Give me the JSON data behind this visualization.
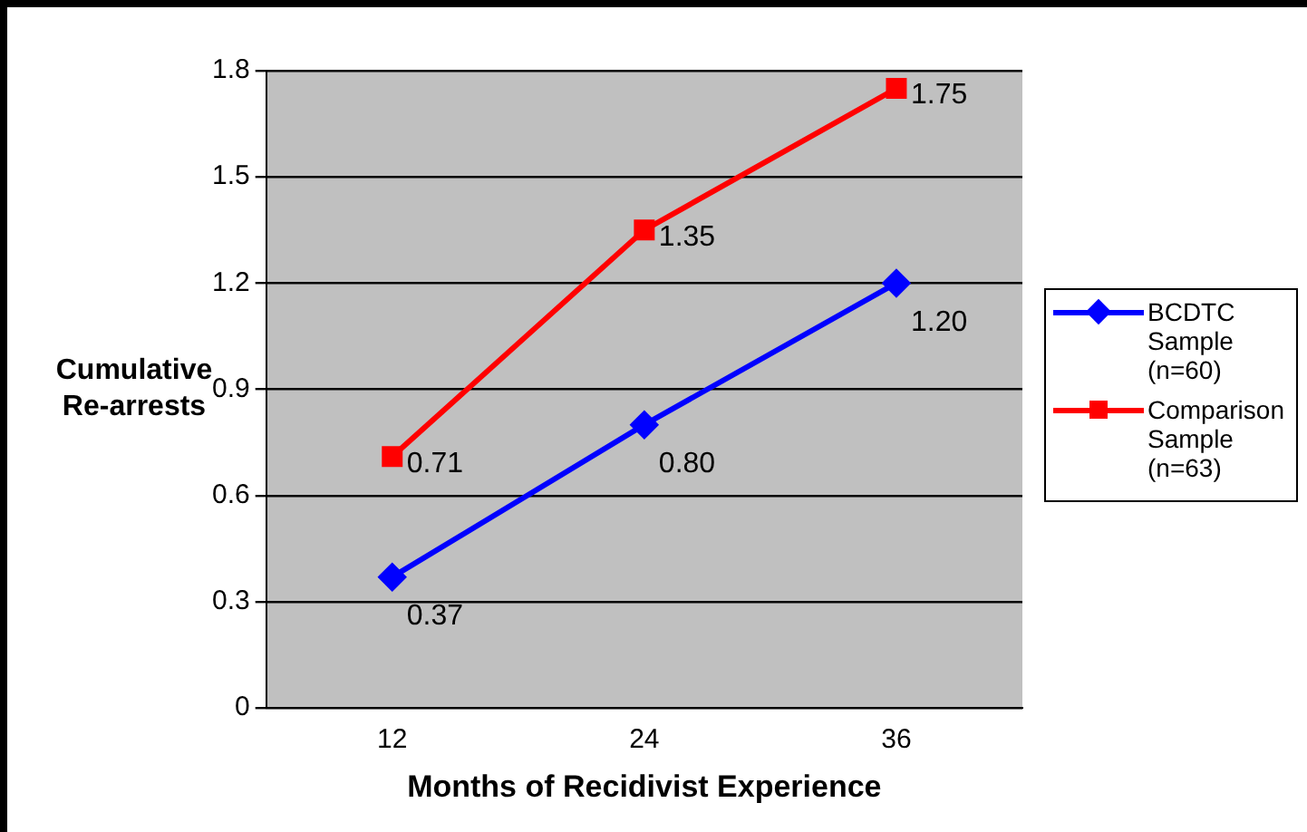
{
  "chart_data": {
    "type": "line",
    "xlabel": "Months of Recidivist Experience",
    "ylabel": "Cumulative Re-arrests",
    "categories": [
      "12",
      "24",
      "36"
    ],
    "series": [
      {
        "name": "BCDTC Sample (n=60)",
        "color": "#0000ff",
        "marker": "diamond",
        "values": [
          0.37,
          0.8,
          1.2
        ],
        "value_labels": [
          "0.37",
          "0.80",
          "1.20"
        ]
      },
      {
        "name": "Comparison Sample (n=63)",
        "color": "#ff0000",
        "marker": "square",
        "values": [
          0.71,
          1.35,
          1.75
        ],
        "value_labels": [
          "0.71",
          "1.35",
          "1.75"
        ]
      }
    ],
    "ylim": [
      0,
      1.8
    ],
    "yticks": [
      0,
      0.3,
      0.6,
      0.9,
      1.2,
      1.5,
      1.8
    ],
    "grid": "y",
    "legend": "right"
  }
}
